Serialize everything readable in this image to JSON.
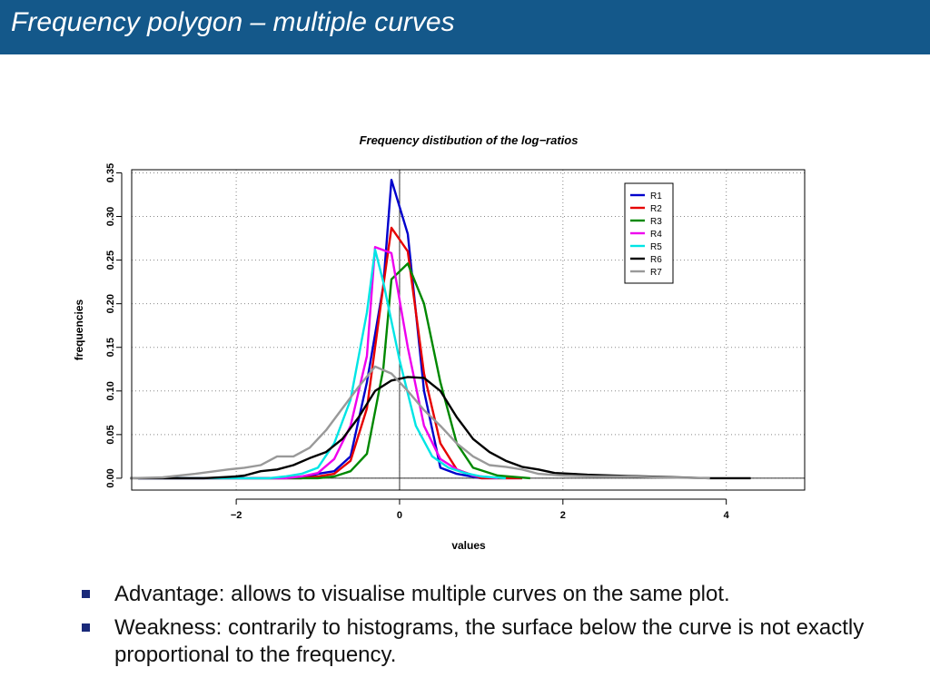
{
  "slide": {
    "title": "Frequency polygon – multiple curves",
    "header_color": "#14588a"
  },
  "bullets": [
    "Advantage: allows to visualise multiple curves on the same plot.",
    "Weakness: contrarily to histograms, the surface below the curve is not exactly proportional to the frequency."
  ],
  "chart_data": {
    "type": "line",
    "title": "Frequency distibution of the log−ratios",
    "xlabel": "values",
    "ylabel": "frequencies",
    "xlim": [
      -3.28,
      4.96
    ],
    "ylim": [
      -0.0136,
      0.3536
    ],
    "x_ticks": [
      -2,
      0,
      2,
      4
    ],
    "x_tick_labels": [
      "−2",
      "0",
      "2",
      "4"
    ],
    "y_ticks": [
      0.0,
      0.05,
      0.1,
      0.15,
      0.2,
      0.25,
      0.3,
      0.35
    ],
    "y_tick_labels": [
      "0.00",
      "0.05",
      "0.10",
      "0.15",
      "0.20",
      "0.25",
      "0.30",
      "0.35"
    ],
    "grid": true,
    "legend_position": "top-right",
    "reference_lines": {
      "x": 0,
      "y": 0
    },
    "series": [
      {
        "name": "R1",
        "color": "#0000cc",
        "x": [
          -3.2,
          -1.2,
          -1.0,
          -0.8,
          -0.6,
          -0.4,
          -0.2,
          -0.1,
          0.1,
          0.3,
          0.5,
          0.7,
          1.0,
          1.5
        ],
        "y": [
          0.0,
          0.0,
          0.005,
          0.008,
          0.025,
          0.11,
          0.22,
          0.342,
          0.28,
          0.1,
          0.012,
          0.005,
          0.0,
          0.0
        ]
      },
      {
        "name": "R2",
        "color": "#e60000",
        "x": [
          -3.2,
          -1.2,
          -1.0,
          -0.8,
          -0.6,
          -0.4,
          -0.2,
          -0.1,
          0.1,
          0.3,
          0.5,
          0.7,
          1.0,
          1.5
        ],
        "y": [
          0.0,
          0.0,
          0.002,
          0.005,
          0.02,
          0.08,
          0.22,
          0.287,
          0.26,
          0.12,
          0.04,
          0.01,
          0.0,
          0.0
        ]
      },
      {
        "name": "R3",
        "color": "#008800",
        "x": [
          -3.2,
          -1.0,
          -0.8,
          -0.6,
          -0.4,
          -0.2,
          -0.1,
          0.1,
          0.3,
          0.5,
          0.7,
          0.9,
          1.2,
          1.6
        ],
        "y": [
          0.0,
          0.0,
          0.002,
          0.008,
          0.028,
          0.125,
          0.228,
          0.246,
          0.2,
          0.11,
          0.04,
          0.012,
          0.003,
          0.0
        ]
      },
      {
        "name": "R4",
        "color": "#ee00ee",
        "x": [
          -3.2,
          -1.4,
          -1.2,
          -1.0,
          -0.8,
          -0.6,
          -0.4,
          -0.3,
          -0.1,
          0.1,
          0.3,
          0.5,
          0.7,
          0.9,
          1.2
        ],
        "y": [
          0.0,
          0.0,
          0.002,
          0.006,
          0.022,
          0.06,
          0.14,
          0.265,
          0.258,
          0.15,
          0.06,
          0.022,
          0.01,
          0.003,
          0.0
        ]
      },
      {
        "name": "R5",
        "color": "#00e5e5",
        "x": [
          -3.2,
          -1.6,
          -1.4,
          -1.2,
          -1.0,
          -0.8,
          -0.6,
          -0.4,
          -0.3,
          -0.2,
          0.0,
          0.2,
          0.4,
          0.6,
          0.8,
          1.0,
          1.3
        ],
        "y": [
          0.0,
          0.0,
          0.002,
          0.005,
          0.012,
          0.04,
          0.09,
          0.19,
          0.262,
          0.225,
          0.135,
          0.06,
          0.025,
          0.012,
          0.006,
          0.002,
          0.0
        ]
      },
      {
        "name": "R6",
        "color": "#000000",
        "x": [
          -3.3,
          -2.8,
          -2.4,
          -2.0,
          -1.9,
          -1.7,
          -1.5,
          -1.3,
          -1.1,
          -0.9,
          -0.7,
          -0.5,
          -0.3,
          -0.1,
          0.1,
          0.3,
          0.5,
          0.7,
          0.9,
          1.1,
          1.3,
          1.5,
          1.7,
          1.9,
          2.1,
          2.3,
          2.6,
          3.0,
          3.4,
          3.8,
          4.3
        ],
        "y": [
          0.0,
          0.0,
          0.0,
          0.002,
          0.003,
          0.008,
          0.01,
          0.015,
          0.023,
          0.03,
          0.045,
          0.07,
          0.1,
          0.112,
          0.116,
          0.115,
          0.1,
          0.07,
          0.045,
          0.03,
          0.02,
          0.013,
          0.01,
          0.006,
          0.005,
          0.004,
          0.003,
          0.002,
          0.001,
          0.0,
          0.0
        ]
      },
      {
        "name": "R7",
        "color": "#999999",
        "x": [
          -3.3,
          -2.9,
          -2.5,
          -2.1,
          -1.9,
          -1.7,
          -1.5,
          -1.3,
          -1.1,
          -0.9,
          -0.7,
          -0.5,
          -0.3,
          -0.1,
          0.1,
          0.3,
          0.5,
          0.7,
          0.9,
          1.1,
          1.3,
          1.5,
          1.7,
          2.0,
          2.4,
          2.8,
          3.2,
          3.8
        ],
        "y": [
          0.0,
          0.001,
          0.005,
          0.01,
          0.012,
          0.015,
          0.025,
          0.025,
          0.035,
          0.055,
          0.08,
          0.105,
          0.128,
          0.12,
          0.1,
          0.078,
          0.06,
          0.04,
          0.025,
          0.015,
          0.013,
          0.01,
          0.005,
          0.003,
          0.002,
          0.002,
          0.001,
          0.0
        ]
      }
    ]
  }
}
